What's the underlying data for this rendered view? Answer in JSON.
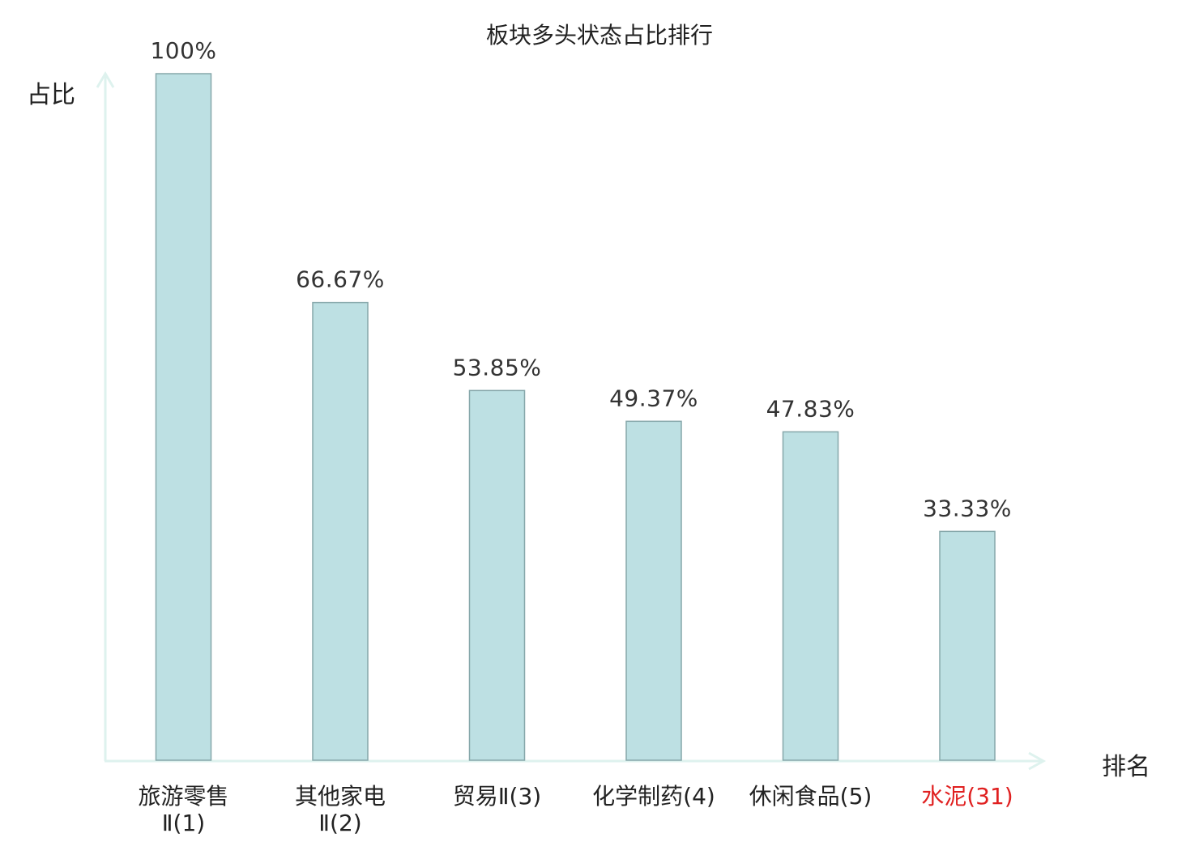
{
  "chart_data": {
    "type": "bar",
    "title": "板块多头状态占比排行",
    "ylabel": "占比",
    "xlabel": "排名",
    "ylim": [
      0,
      100
    ],
    "grid": false,
    "categories": [
      [
        "旅游零售",
        "Ⅱ(1)"
      ],
      [
        "其他家电",
        "Ⅱ(2)"
      ],
      [
        "贸易Ⅱ(3)"
      ],
      [
        "化学制药(4)"
      ],
      [
        "休闲食品(5)"
      ],
      [
        "水泥(31)"
      ]
    ],
    "values": [
      100,
      66.67,
      53.85,
      49.37,
      47.83,
      33.33
    ],
    "value_labels": [
      "100%",
      "66.67%",
      "53.85%",
      "49.37%",
      "47.83%",
      "33.33%"
    ],
    "highlighted_category_index": 5,
    "colors": {
      "bar_fill": "#bde0e3",
      "bar_stroke": "#86a7aa",
      "axis": "#def2ee",
      "label_text": "#222222",
      "highlight_text": "#e02020"
    }
  }
}
